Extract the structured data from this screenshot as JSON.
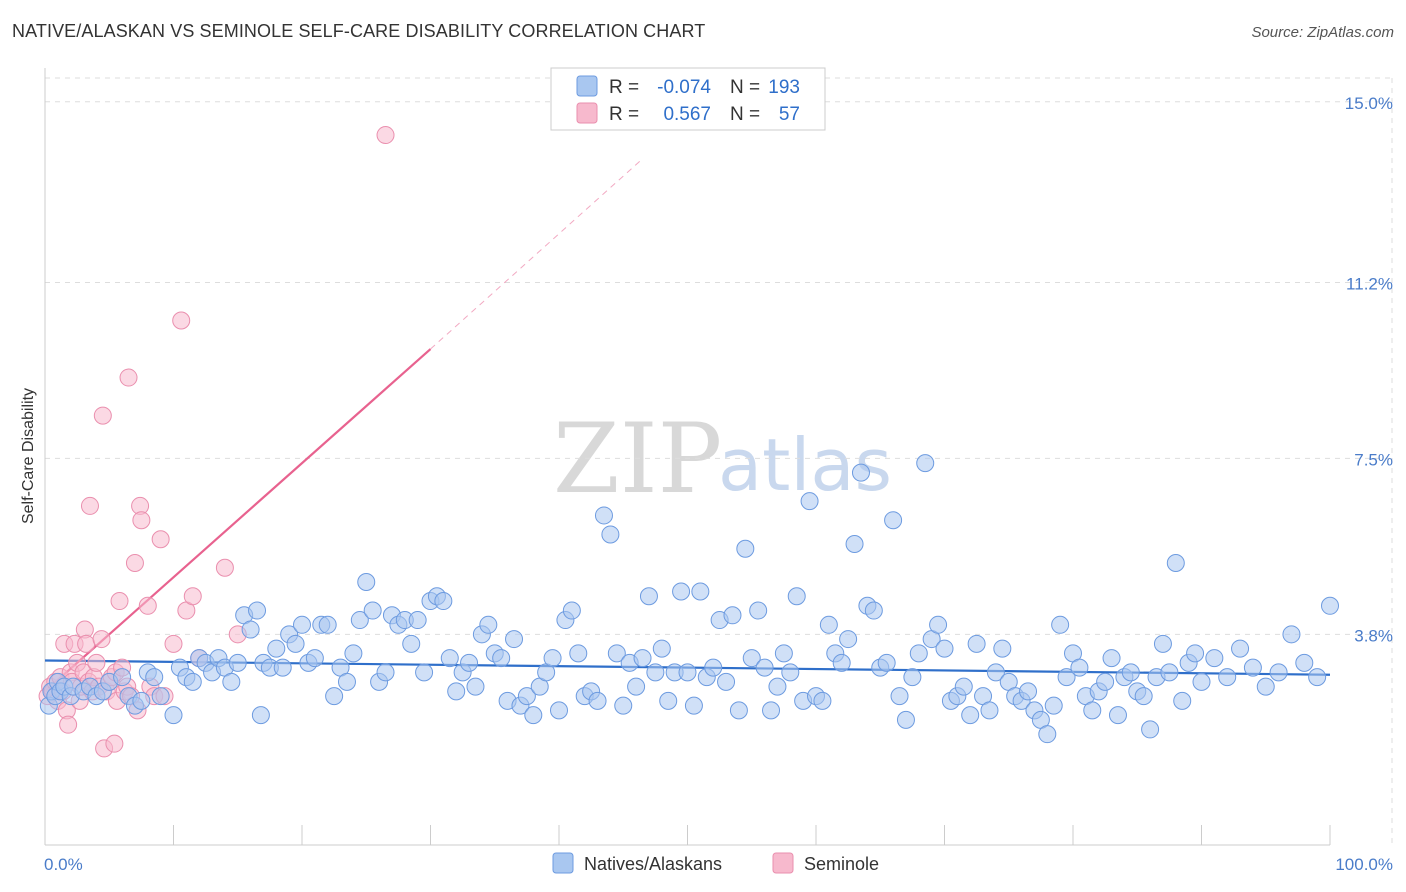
{
  "header": {
    "title": "NATIVE/ALASKAN VS SEMINOLE SELF-CARE DISABILITY CORRELATION CHART",
    "source": "Source: ZipAtlas.com"
  },
  "watermark": {
    "zip": "ZIP",
    "atlas": "atlas"
  },
  "legend": {
    "rows": [
      {
        "r_label": "R =",
        "r_value": "-0.074",
        "n_label": "N =",
        "n_value": "193"
      },
      {
        "r_label": "R =",
        "r_value": "0.567",
        "n_label": "N =",
        "n_value": "57"
      }
    ]
  },
  "bottom_legend": {
    "items": [
      "Natives/Alaskans",
      "Seminole"
    ]
  },
  "colors": {
    "blue_fill": "#a9c7f0",
    "blue_stroke": "#6d9be0",
    "blue_line": "#2f6fca",
    "pink_fill": "#f7b9cd",
    "pink_stroke": "#ea8fae",
    "pink_line": "#e8628f",
    "grid": "#dddddd",
    "axis_text": "#4a7cc9"
  },
  "chart_data": {
    "type": "scatter",
    "title": "NATIVE/ALASKAN VS SEMINOLE SELF-CARE DISABILITY CORRELATION CHART",
    "xlabel": "",
    "ylabel": "Self-Care Disability",
    "xlim": [
      0,
      100
    ],
    "ylim": [
      0,
      15.5
    ],
    "x_tick_labels": [
      "0.0%",
      "100.0%"
    ],
    "y_ticks": [
      3.8,
      7.5,
      11.2,
      15.0
    ],
    "y_tick_labels": [
      "3.8%",
      "7.5%",
      "11.2%",
      "15.0%"
    ],
    "grid": true,
    "series": [
      {
        "name": "Natives/Alaskans",
        "color": "#a9c7f0",
        "trend": {
          "x": [
            0,
            100
          ],
          "y": [
            3.25,
            2.95
          ],
          "extended": false
        },
        "points": [
          [
            0.3,
            2.3
          ],
          [
            0.5,
            2.6
          ],
          [
            0.8,
            2.5
          ],
          [
            1.0,
            2.8
          ],
          [
            1.2,
            2.6
          ],
          [
            1.5,
            2.7
          ],
          [
            2.0,
            2.5
          ],
          [
            2.2,
            2.7
          ],
          [
            3.0,
            2.6
          ],
          [
            3.5,
            2.7
          ],
          [
            4.0,
            2.5
          ],
          [
            4.5,
            2.6
          ],
          [
            5.0,
            2.8
          ],
          [
            6.0,
            2.9
          ],
          [
            6.5,
            2.5
          ],
          [
            7.0,
            2.3
          ],
          [
            7.5,
            2.4
          ],
          [
            8.0,
            3.0
          ],
          [
            8.5,
            2.9
          ],
          [
            9.0,
            2.5
          ],
          [
            10.0,
            2.1
          ],
          [
            10.5,
            3.1
          ],
          [
            11.0,
            2.9
          ],
          [
            11.5,
            2.8
          ],
          [
            12.0,
            3.3
          ],
          [
            12.5,
            3.2
          ],
          [
            13.0,
            3.0
          ],
          [
            13.5,
            3.3
          ],
          [
            14.0,
            3.1
          ],
          [
            14.5,
            2.8
          ],
          [
            15.0,
            3.2
          ],
          [
            15.5,
            4.2
          ],
          [
            16.0,
            3.9
          ],
          [
            16.5,
            4.3
          ],
          [
            16.8,
            2.1
          ],
          [
            17.0,
            3.2
          ],
          [
            17.5,
            3.1
          ],
          [
            18.0,
            3.5
          ],
          [
            18.5,
            3.1
          ],
          [
            19.0,
            3.8
          ],
          [
            19.5,
            3.6
          ],
          [
            20.0,
            4.0
          ],
          [
            20.5,
            3.2
          ],
          [
            21.0,
            3.3
          ],
          [
            21.5,
            4.0
          ],
          [
            22.0,
            4.0
          ],
          [
            22.5,
            2.5
          ],
          [
            23.0,
            3.1
          ],
          [
            23.5,
            2.8
          ],
          [
            24.0,
            3.4
          ],
          [
            24.5,
            4.1
          ],
          [
            25.0,
            4.9
          ],
          [
            25.5,
            4.3
          ],
          [
            26.0,
            2.8
          ],
          [
            26.5,
            3.0
          ],
          [
            27.0,
            4.2
          ],
          [
            27.5,
            4.0
          ],
          [
            28.0,
            4.1
          ],
          [
            28.5,
            3.6
          ],
          [
            29.0,
            4.1
          ],
          [
            29.5,
            3.0
          ],
          [
            30.0,
            4.5
          ],
          [
            30.5,
            4.6
          ],
          [
            31.0,
            4.5
          ],
          [
            31.5,
            3.3
          ],
          [
            32.0,
            2.6
          ],
          [
            32.5,
            3.0
          ],
          [
            33.0,
            3.2
          ],
          [
            33.5,
            2.7
          ],
          [
            34.0,
            3.8
          ],
          [
            34.5,
            4.0
          ],
          [
            35.0,
            3.4
          ],
          [
            35.5,
            3.3
          ],
          [
            36.0,
            2.4
          ],
          [
            36.5,
            3.7
          ],
          [
            37.0,
            2.3
          ],
          [
            37.5,
            2.5
          ],
          [
            38.0,
            2.1
          ],
          [
            38.5,
            2.7
          ],
          [
            39.0,
            3.0
          ],
          [
            39.5,
            3.3
          ],
          [
            40.0,
            2.2
          ],
          [
            40.5,
            4.1
          ],
          [
            41.0,
            4.3
          ],
          [
            41.5,
            3.4
          ],
          [
            42.0,
            2.5
          ],
          [
            42.5,
            2.6
          ],
          [
            43.0,
            2.4
          ],
          [
            43.5,
            6.3
          ],
          [
            44.0,
            5.9
          ],
          [
            44.5,
            3.4
          ],
          [
            45.0,
            2.3
          ],
          [
            45.5,
            3.2
          ],
          [
            46.0,
            2.7
          ],
          [
            46.5,
            3.3
          ],
          [
            47.0,
            4.6
          ],
          [
            47.5,
            3.0
          ],
          [
            48.0,
            3.5
          ],
          [
            48.5,
            2.4
          ],
          [
            49.0,
            3.0
          ],
          [
            49.5,
            4.7
          ],
          [
            50.0,
            3.0
          ],
          [
            50.5,
            2.3
          ],
          [
            51.0,
            4.7
          ],
          [
            51.5,
            2.9
          ],
          [
            52.0,
            3.1
          ],
          [
            52.5,
            4.1
          ],
          [
            53.0,
            2.8
          ],
          [
            53.5,
            4.2
          ],
          [
            54.0,
            2.2
          ],
          [
            54.5,
            5.6
          ],
          [
            55.0,
            3.3
          ],
          [
            55.5,
            4.3
          ],
          [
            56.0,
            3.1
          ],
          [
            56.5,
            2.2
          ],
          [
            57.0,
            2.7
          ],
          [
            57.5,
            3.4
          ],
          [
            58.0,
            3.0
          ],
          [
            58.5,
            4.6
          ],
          [
            59.0,
            2.4
          ],
          [
            59.5,
            6.6
          ],
          [
            60.0,
            2.5
          ],
          [
            60.5,
            2.4
          ],
          [
            61.0,
            4.0
          ],
          [
            61.5,
            3.4
          ],
          [
            62.0,
            3.2
          ],
          [
            62.5,
            3.7
          ],
          [
            63.0,
            5.7
          ],
          [
            63.5,
            7.2
          ],
          [
            64.0,
            4.4
          ],
          [
            64.5,
            4.3
          ],
          [
            65.0,
            3.1
          ],
          [
            65.5,
            3.2
          ],
          [
            66.0,
            6.2
          ],
          [
            66.5,
            2.5
          ],
          [
            67.0,
            2.0
          ],
          [
            67.5,
            2.9
          ],
          [
            68.0,
            3.4
          ],
          [
            68.5,
            7.4
          ],
          [
            69.0,
            3.7
          ],
          [
            69.5,
            4.0
          ],
          [
            70.0,
            3.5
          ],
          [
            70.5,
            2.4
          ],
          [
            71.0,
            2.5
          ],
          [
            71.5,
            2.7
          ],
          [
            72.0,
            2.1
          ],
          [
            72.5,
            3.6
          ],
          [
            73.0,
            2.5
          ],
          [
            73.5,
            2.2
          ],
          [
            74.0,
            3.0
          ],
          [
            74.5,
            3.5
          ],
          [
            75.0,
            2.8
          ],
          [
            75.5,
            2.5
          ],
          [
            76.0,
            2.4
          ],
          [
            76.5,
            2.6
          ],
          [
            77.0,
            2.2
          ],
          [
            77.5,
            2.0
          ],
          [
            78.0,
            1.7
          ],
          [
            78.5,
            2.3
          ],
          [
            79.0,
            4.0
          ],
          [
            79.5,
            2.9
          ],
          [
            80.0,
            3.4
          ],
          [
            80.5,
            3.1
          ],
          [
            81.0,
            2.5
          ],
          [
            81.5,
            2.2
          ],
          [
            82.0,
            2.6
          ],
          [
            82.5,
            2.8
          ],
          [
            83.0,
            3.3
          ],
          [
            83.5,
            2.1
          ],
          [
            84.0,
            2.9
          ],
          [
            84.5,
            3.0
          ],
          [
            85.0,
            2.6
          ],
          [
            85.5,
            2.5
          ],
          [
            86.0,
            1.8
          ],
          [
            86.5,
            2.9
          ],
          [
            87.0,
            3.6
          ],
          [
            87.5,
            3.0
          ],
          [
            88.0,
            5.3
          ],
          [
            88.5,
            2.4
          ],
          [
            89.0,
            3.2
          ],
          [
            89.5,
            3.4
          ],
          [
            90.0,
            2.8
          ],
          [
            91.0,
            3.3
          ],
          [
            92.0,
            2.9
          ],
          [
            93.0,
            3.5
          ],
          [
            94.0,
            3.1
          ],
          [
            95.0,
            2.7
          ],
          [
            96.0,
            3.0
          ],
          [
            97.0,
            3.8
          ],
          [
            98.0,
            3.2
          ],
          [
            99.0,
            2.9
          ],
          [
            100.0,
            4.4
          ]
        ]
      },
      {
        "name": "Seminole",
        "color": "#f7b9cd",
        "trend": {
          "x": [
            0,
            30
          ],
          "y": [
            2.6,
            9.8
          ],
          "dashed_to": [
            46.5,
            13.8
          ]
        },
        "points": [
          [
            0.2,
            2.5
          ],
          [
            0.4,
            2.7
          ],
          [
            0.6,
            2.6
          ],
          [
            0.8,
            2.8
          ],
          [
            1.0,
            2.4
          ],
          [
            1.2,
            2.9
          ],
          [
            1.4,
            2.6
          ],
          [
            1.5,
            3.6
          ],
          [
            1.7,
            2.2
          ],
          [
            1.8,
            1.9
          ],
          [
            2.0,
            3.0
          ],
          [
            2.1,
            2.8
          ],
          [
            2.3,
            3.6
          ],
          [
            2.5,
            3.2
          ],
          [
            2.7,
            2.4
          ],
          [
            2.8,
            2.7
          ],
          [
            3.0,
            3.0
          ],
          [
            3.1,
            3.9
          ],
          [
            3.2,
            3.6
          ],
          [
            3.4,
            2.8
          ],
          [
            3.5,
            6.5
          ],
          [
            3.7,
            2.6
          ],
          [
            3.8,
            2.9
          ],
          [
            4.0,
            3.2
          ],
          [
            4.2,
            2.7
          ],
          [
            4.4,
            3.7
          ],
          [
            4.5,
            8.4
          ],
          [
            4.6,
            1.4
          ],
          [
            4.8,
            2.6
          ],
          [
            5.0,
            2.8
          ],
          [
            5.2,
            2.9
          ],
          [
            5.4,
            1.5
          ],
          [
            5.5,
            3.0
          ],
          [
            5.6,
            2.4
          ],
          [
            5.8,
            4.5
          ],
          [
            6.0,
            3.1
          ],
          [
            6.2,
            2.6
          ],
          [
            6.4,
            2.7
          ],
          [
            6.5,
            9.2
          ],
          [
            6.7,
            2.5
          ],
          [
            7.0,
            5.3
          ],
          [
            7.2,
            2.2
          ],
          [
            7.4,
            6.5
          ],
          [
            7.5,
            6.2
          ],
          [
            8.0,
            4.4
          ],
          [
            8.2,
            2.7
          ],
          [
            8.5,
            2.5
          ],
          [
            9.0,
            5.8
          ],
          [
            9.3,
            2.5
          ],
          [
            10.0,
            3.6
          ],
          [
            10.6,
            10.4
          ],
          [
            11.0,
            4.3
          ],
          [
            11.5,
            4.6
          ],
          [
            12.0,
            3.3
          ],
          [
            14.0,
            5.2
          ],
          [
            15.0,
            3.8
          ],
          [
            26.5,
            14.3
          ]
        ]
      }
    ]
  }
}
